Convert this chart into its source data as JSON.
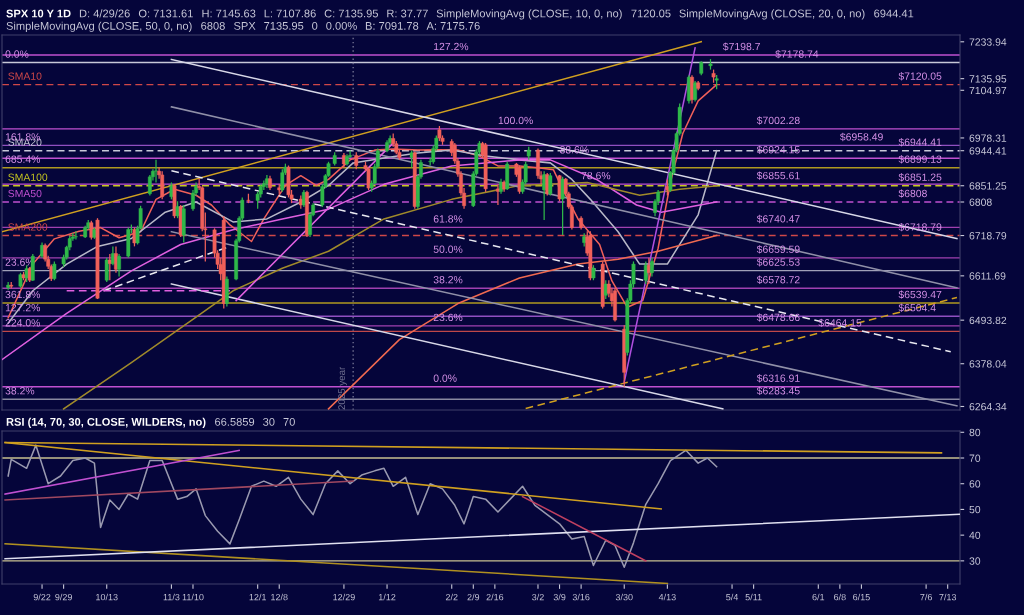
{
  "chart_data": [
    {
      "type": "candlestick",
      "title": "SPX 10 Y 1D",
      "tick_labels": "y",
      "annotations": [
        "D: 4/29/26",
        "O: 7131.61",
        "H: 7145.63",
        "L: 7107.86",
        "C: 7135.95",
        "R: 37.77",
        "SimpleMovingAvg (CLOSE, 10, 0, no)",
        "7120.05",
        "SimpleMovingAvg (CLOSE, 20, 0, no)",
        "6944.41",
        "SimpleMovingAvg (CLOSE, 50, 0, no)",
        "6808",
        "SPX",
        "7135.95",
        "0",
        "0.00%",
        "B: 7091.78",
        "A: 7175.76",
        {
          "text": "0.0%",
          "x": "2025-09-10",
          "y": 7178.74
        },
        {
          "text": "161.8%",
          "x": "2025-09-10",
          "y": 6958.49
        },
        {
          "text": "685.4%",
          "x": "2025-09-10",
          "y": 6899.13
        },
        {
          "text": "23.6%",
          "x": "2025-09-10",
          "y": 6625.53
        },
        {
          "text": "361.8%",
          "x": "2025-09-10",
          "y": 6539.47
        },
        {
          "text": "127.2%",
          "x": "2025-09-10",
          "y": 6504.4
        },
        {
          "text": "224.0%",
          "x": "2025-09-10",
          "y": 6464.15
        },
        {
          "text": "38.2%",
          "x": "2025-09-10",
          "y": 6283.45
        },
        {
          "text": "127.2%",
          "x": "2026-01-27",
          "y": 7198.7
        },
        {
          "text": "100.0%",
          "x": "2026-02-17",
          "y": 7002.28
        },
        {
          "text": "88.6%",
          "x": "2026-03-09",
          "y": 6924.15
        },
        {
          "text": "78.6%",
          "x": "2026-03-16",
          "y": 6855.61
        },
        {
          "text": "61.8%",
          "x": "2026-01-27",
          "y": 6740.47
        },
        {
          "text": "50.0%",
          "x": "2026-01-27",
          "y": 6659.59
        },
        {
          "text": "38.2%",
          "x": "2026-01-27",
          "y": 6578.72
        },
        {
          "text": "23.6%",
          "x": "2026-01-27",
          "y": 6478.66
        },
        {
          "text": "0.0%",
          "x": "2026-01-27",
          "y": 6316.91
        },
        {
          "text": "$7198.7",
          "x": "2026-05-01",
          "y": 7198.7
        },
        {
          "text": "$7178.74",
          "x": "2026-05-18",
          "y": 7178.74
        },
        {
          "text": "$7120.05",
          "x": "2026-06-27",
          "y": 7120.05
        },
        {
          "text": "$7002.28",
          "x": "2026-05-12",
          "y": 7002.28
        },
        {
          "text": "$6958.49",
          "x": "2026-06-08",
          "y": 6958.49
        },
        {
          "text": "$6944.41",
          "x": "2026-06-27",
          "y": 6944.41
        },
        {
          "text": "$6924.15",
          "x": "2026-05-12",
          "y": 6924.15
        },
        {
          "text": "$6899.13",
          "x": "2026-06-27",
          "y": 6899.13
        },
        {
          "text": "$6855.61",
          "x": "2026-05-12",
          "y": 6855.61
        },
        {
          "text": "$6851.25",
          "x": "2026-06-27",
          "y": 6851.25
        },
        {
          "text": "$6808",
          "x": "2026-06-27",
          "y": 6808
        },
        {
          "text": "$6740.47",
          "x": "2026-05-12",
          "y": 6740.47
        },
        {
          "text": "$6718.79",
          "x": "2026-06-27",
          "y": 6718.79
        },
        {
          "text": "$6659.59",
          "x": "2026-05-12",
          "y": 6659.59
        },
        {
          "text": "$6625.53",
          "x": "2026-05-12",
          "y": 6625.53
        },
        {
          "text": "$6578.72",
          "x": "2026-05-12",
          "y": 6578.72
        },
        {
          "text": "$6539.47",
          "x": "2026-06-27",
          "y": 6539.47
        },
        {
          "text": "$6504.4",
          "x": "2026-06-27",
          "y": 6504.4
        },
        {
          "text": "$6478.66",
          "x": "2026-05-12",
          "y": 6478.66
        },
        {
          "text": "$6464.15",
          "x": "2026-06-01",
          "y": 6464.15
        },
        {
          "text": "$6316.91",
          "x": "2026-05-12",
          "y": 6316.91
        },
        {
          "text": "$6283.45",
          "x": "2026-05-12",
          "y": 6283.45
        }
      ],
      "xlim": [
        "2025-09-09",
        "2026-07-17"
      ],
      "ylim": [
        6255,
        7252
      ],
      "yticks": [
        7233.94,
        7135.95,
        7104.97,
        6978.31,
        6944.41,
        6851.25,
        6808,
        6718.79,
        6611.69,
        6493.82,
        6378.04,
        6264.34
      ],
      "x": [
        "2025-09-11",
        "2025-09-12",
        "2025-09-15",
        "2025-09-16",
        "2025-09-17",
        "2025-09-18",
        "2025-09-19",
        "2025-09-22",
        "2025-09-23",
        "2025-09-24",
        "2025-09-25",
        "2025-09-26",
        "2025-09-29",
        "2025-09-30",
        "2025-10-01",
        "2025-10-02",
        "2025-10-03",
        "2025-10-06",
        "2025-10-07",
        "2025-10-08",
        "2025-10-09",
        "2025-10-10",
        "2025-10-13",
        "2025-10-14",
        "2025-10-15",
        "2025-10-16",
        "2025-10-17",
        "2025-10-20",
        "2025-10-21",
        "2025-10-22",
        "2025-10-23",
        "2025-10-24",
        "2025-10-27",
        "2025-10-28",
        "2025-10-29",
        "2025-10-30",
        "2025-10-31",
        "2025-11-03",
        "2025-11-04",
        "2025-11-05",
        "2025-11-06",
        "2025-11-07",
        "2025-11-10",
        "2025-11-11",
        "2025-11-12",
        "2025-11-13",
        "2025-11-14",
        "2025-11-17",
        "2025-11-18",
        "2025-11-19",
        "2025-11-20",
        "2025-11-21",
        "2025-11-24",
        "2025-11-25",
        "2025-11-26",
        "2025-11-28",
        "2025-12-01",
        "2025-12-02",
        "2025-12-03",
        "2025-12-04",
        "2025-12-05",
        "2025-12-08",
        "2025-12-09",
        "2025-12-10",
        "2025-12-11",
        "2025-12-12",
        "2025-12-15",
        "2025-12-16",
        "2025-12-17",
        "2025-12-18",
        "2025-12-19",
        "2025-12-22",
        "2025-12-23",
        "2025-12-24",
        "2025-12-26",
        "2025-12-29",
        "2025-12-30",
        "2025-12-31",
        "2026-01-02",
        "2026-01-05",
        "2026-01-06",
        "2026-01-07",
        "2026-01-08",
        "2026-01-09",
        "2026-01-12",
        "2026-01-13",
        "2026-01-14",
        "2026-01-15",
        "2026-01-16",
        "2026-01-20",
        "2026-01-21",
        "2026-01-22",
        "2026-01-23",
        "2026-01-26",
        "2026-01-27",
        "2026-01-28",
        "2026-01-29",
        "2026-01-30",
        "2026-02-02",
        "2026-02-03",
        "2026-02-04",
        "2026-02-05",
        "2026-02-06",
        "2026-02-09",
        "2026-02-10",
        "2026-02-11",
        "2026-02-12",
        "2026-02-13",
        "2026-02-17",
        "2026-02-18",
        "2026-02-19",
        "2026-02-20",
        "2026-02-23",
        "2026-02-24",
        "2026-02-25",
        "2026-02-26",
        "2026-02-27",
        "2026-03-02",
        "2026-03-03",
        "2026-03-04",
        "2026-03-05",
        "2026-03-06",
        "2026-03-09",
        "2026-03-10",
        "2026-03-11",
        "2026-03-12",
        "2026-03-13",
        "2026-03-16",
        "2026-03-17",
        "2026-03-18",
        "2026-03-19",
        "2026-03-20",
        "2026-03-23",
        "2026-03-24",
        "2026-03-25",
        "2026-03-26",
        "2026-03-27",
        "2026-03-30",
        "2026-03-31",
        "2026-04-01",
        "2026-04-02",
        "2026-04-06",
        "2026-04-07",
        "2026-04-08",
        "2026-04-09",
        "2026-04-10",
        "2026-04-13",
        "2026-04-14",
        "2026-04-15",
        "2026-04-16",
        "2026-04-17",
        "2026-04-20",
        "2026-04-21",
        "2026-04-22",
        "2026-04-23",
        "2026-04-24",
        "2026-04-27",
        "2026-04-28",
        "2026-04-29"
      ],
      "ohlc": [
        [
          6580,
          6595,
          6575,
          6587
        ],
        [
          6587,
          6595,
          6578,
          6584
        ],
        [
          6584,
          6620,
          6580,
          6615
        ],
        [
          6615,
          6622,
          6600,
          6606
        ],
        [
          6606,
          6640,
          6595,
          6631
        ],
        [
          6631,
          6635,
          6595,
          6600
        ],
        [
          6600,
          6670,
          6598,
          6664
        ],
        [
          6664,
          6700,
          6660,
          6693
        ],
        [
          6693,
          6698,
          6650,
          6656
        ],
        [
          6656,
          6665,
          6630,
          6637
        ],
        [
          6637,
          6642,
          6598,
          6604
        ],
        [
          6604,
          6650,
          6600,
          6643
        ],
        [
          6643,
          6668,
          6635,
          6661
        ],
        [
          6661,
          6692,
          6655,
          6688
        ],
        [
          6688,
          6718,
          6680,
          6711
        ],
        [
          6711,
          6725,
          6705,
          6715
        ],
        [
          6715,
          6730,
          6708,
          6715
        ],
        [
          6715,
          6745,
          6712,
          6740
        ],
        [
          6740,
          6760,
          6735,
          6753
        ],
        [
          6753,
          6758,
          6708,
          6714
        ],
        [
          6714,
          6740,
          6710,
          6735
        ],
        [
          6760,
          6765,
          6550,
          6552
        ],
        [
          6600,
          6660,
          6595,
          6654
        ],
        [
          6654,
          6670,
          6600,
          6644
        ],
        [
          6644,
          6690,
          6640,
          6671
        ],
        [
          6671,
          6690,
          6620,
          6629
        ],
        [
          6629,
          6670,
          6610,
          6664
        ],
        [
          6664,
          6740,
          6660,
          6735
        ],
        [
          6735,
          6748,
          6725,
          6735
        ],
        [
          6735,
          6740,
          6690,
          6699
        ],
        [
          6699,
          6745,
          6695,
          6738
        ],
        [
          6738,
          6798,
          6735,
          6791
        ],
        [
          6830,
          6880,
          6825,
          6875
        ],
        [
          6875,
          6895,
          6865,
          6890
        ],
        [
          6890,
          6920,
          6860,
          6890
        ],
        [
          6890,
          6900,
          6870,
          6880
        ],
        [
          6880,
          6890,
          6815,
          6822
        ],
        [
          6822,
          6860,
          6815,
          6851
        ],
        [
          6851,
          6855,
          6765,
          6771
        ],
        [
          6771,
          6810,
          6765,
          6796
        ],
        [
          6796,
          6800,
          6715,
          6720
        ],
        [
          6720,
          6800,
          6700,
          6790
        ],
        [
          6790,
          6840,
          6785,
          6832
        ],
        [
          6832,
          6860,
          6825,
          6850
        ],
        [
          6850,
          6870,
          6840,
          6846
        ],
        [
          6846,
          6850,
          6730,
          6737
        ],
        [
          6737,
          6780,
          6650,
          6734
        ],
        [
          6734,
          6738,
          6660,
          6672
        ],
        [
          6672,
          6680,
          6630,
          6642
        ],
        [
          6642,
          6660,
          6600,
          6617
        ],
        [
          6760,
          6770,
          6525,
          6538
        ],
        [
          6538,
          6610,
          6530,
          6603
        ],
        [
          6603,
          6710,
          6600,
          6705
        ],
        [
          6705,
          6770,
          6700,
          6765
        ],
        [
          6765,
          6820,
          6760,
          6813
        ],
        [
          6813,
          6830,
          6805,
          6812
        ],
        [
          6812,
          6835,
          6790,
          6829
        ],
        [
          6829,
          6855,
          6820,
          6849
        ],
        [
          6849,
          6865,
          6840,
          6857
        ],
        [
          6857,
          6880,
          6845,
          6870
        ],
        [
          6870,
          6878,
          6840,
          6846
        ],
        [
          6846,
          6855,
          6830,
          6840
        ],
        [
          6840,
          6895,
          6835,
          6886
        ],
        [
          6886,
          6910,
          6880,
          6901
        ],
        [
          6901,
          6905,
          6820,
          6827
        ],
        [
          6827,
          6840,
          6805,
          6816
        ],
        [
          6816,
          6825,
          6790,
          6800
        ],
        [
          6800,
          6840,
          6795,
          6834
        ],
        [
          6834,
          6838,
          6715,
          6721
        ],
        [
          6721,
          6780,
          6715,
          6774
        ],
        [
          6774,
          6805,
          6770,
          6800
        ],
        [
          6800,
          6855,
          6795,
          6849
        ],
        [
          6849,
          6882,
          6845,
          6878
        ],
        [
          6878,
          6915,
          6875,
          6910
        ],
        [
          6910,
          6940,
          6905,
          6932
        ],
        [
          6932,
          6938,
          6900,
          6909
        ],
        [
          6909,
          6935,
          6905,
          6929
        ],
        [
          6929,
          6945,
          6925,
          6932
        ],
        [
          6932,
          6940,
          6895,
          6905
        ],
        [
          6905,
          6915,
          6890,
          6896
        ],
        [
          6896,
          6900,
          6840,
          6845
        ],
        [
          6845,
          6865,
          6835,
          6858
        ],
        [
          6858,
          6910,
          6855,
          6902
        ],
        [
          6902,
          6950,
          6898,
          6944
        ],
        [
          6944,
          6972,
          6940,
          6966
        ],
        [
          6966,
          6985,
          6960,
          6977
        ],
        [
          6977,
          6990,
          6955,
          6963
        ],
        [
          6963,
          6970,
          6935,
          6940
        ],
        [
          6940,
          6948,
          6920,
          6926
        ],
        [
          6926,
          6945,
          6900,
          6939
        ],
        [
          6939,
          6942,
          6790,
          6796
        ],
        [
          6796,
          6880,
          6790,
          6875
        ],
        [
          6875,
          6920,
          6870,
          6913
        ],
        [
          6915,
          6925,
          6905,
          6915
        ],
        [
          6915,
          6958,
          6910,
          6950
        ],
        [
          6950,
          6985,
          6945,
          6978
        ],
        [
          7000,
          7010,
          6970,
          6978
        ],
        [
          6978,
          6985,
          6960,
          6969
        ],
        [
          6969,
          6975,
          6930,
          6939
        ],
        [
          6960,
          6965,
          6910,
          6917
        ],
        [
          6917,
          6925,
          6875,
          6882
        ],
        [
          6882,
          6890,
          6825,
          6832
        ],
        [
          6832,
          6845,
          6790,
          6798
        ],
        [
          6798,
          6890,
          6795,
          6883
        ],
        [
          6883,
          6948,
          6878,
          6941
        ],
        [
          6941,
          6970,
          6935,
          6964
        ],
        [
          6964,
          6968,
          6925,
          6932
        ],
        [
          6960,
          6965,
          6835,
          6843
        ],
        [
          6843,
          6855,
          6800,
          6836
        ],
        [
          6836,
          6870,
          6830,
          6861
        ],
        [
          6861,
          6865,
          6835,
          6843
        ],
        [
          6843,
          6915,
          6840,
          6909
        ],
        [
          6909,
          6912,
          6875,
          6881
        ],
        [
          6900,
          6905,
          6830,
          6836
        ],
        [
          6836,
          6868,
          6830,
          6861
        ],
        [
          6861,
          6915,
          6855,
          6908
        ],
        [
          6930,
          6955,
          6920,
          6946
        ],
        [
          6946,
          6950,
          6870,
          6878
        ],
        [
          6878,
          6890,
          6855,
          6869
        ],
        [
          6840,
          6890,
          6760,
          6881
        ],
        [
          6881,
          6885,
          6825,
          6830
        ],
        [
          6830,
          6885,
          6825,
          6878
        ],
        [
          6878,
          6880,
          6810,
          6816
        ],
        [
          6816,
          6875,
          6720,
          6869
        ],
        [
          6869,
          6872,
          6825,
          6830
        ],
        [
          6830,
          6835,
          6790,
          6795
        ],
        [
          6795,
          6800,
          6735,
          6740
        ],
        [
          6765,
          6770,
          6735,
          6740
        ],
        [
          6700,
          6725,
          6690,
          6716
        ],
        [
          6716,
          6730,
          6665,
          6672
        ],
        [
          6720,
          6730,
          6600,
          6606
        ],
        [
          6606,
          6640,
          6600,
          6632
        ],
        [
          6643,
          6650,
          6525,
          6530
        ],
        [
          6560,
          6600,
          6550,
          6590
        ],
        [
          6590,
          6600,
          6555,
          6565
        ],
        [
          6565,
          6580,
          6530,
          6545
        ],
        [
          6572,
          6580,
          6490,
          6494
        ],
        [
          6470,
          6480,
          6316.91,
          6355
        ],
        [
          6408,
          6552,
          6400,
          6546
        ],
        [
          6546,
          6600,
          6540,
          6590
        ],
        [
          6590,
          6650,
          6580,
          6643
        ],
        [
          6600,
          6650,
          6590,
          6640
        ],
        [
          6640,
          6660,
          6590,
          6620
        ],
        [
          6620,
          6660,
          6610,
          6650
        ],
        [
          6780,
          6815,
          6770,
          6810
        ],
        [
          6810,
          6840,
          6800,
          6834
        ],
        [
          6850,
          6868,
          6825,
          6840
        ],
        [
          6840,
          6890,
          6835,
          6886
        ],
        [
          6886,
          6950,
          6880,
          6945
        ],
        [
          6946,
          6995,
          6940,
          6990
        ],
        [
          6990,
          7070,
          6985,
          7060
        ],
        [
          7077,
          7145,
          7070,
          7140
        ],
        [
          7140,
          7145,
          7070,
          7080
        ],
        [
          7080,
          7130,
          7075,
          7125
        ],
        [
          7125,
          7130,
          7105,
          7110
        ],
        [
          7150,
          7182,
          7145,
          7179
        ],
        [
          7170,
          7188,
          7160,
          7175
        ],
        [
          7150,
          7160,
          7125,
          7140
        ],
        [
          7131.61,
          7145.63,
          7107.86,
          7135.95
        ]
      ],
      "series": [
        {
          "type": "line",
          "color": "#f0605a",
          "x": [
            "2025-09-11",
            "2025-09-19",
            "2025-09-26",
            "2025-10-04",
            "2025-10-11",
            "2025-10-17",
            "2025-10-24",
            "2025-10-29",
            "2025-11-04",
            "2025-11-11",
            "2025-11-16",
            "2025-11-22",
            "2025-11-29",
            "2025-12-03",
            "2025-12-10",
            "2025-12-15",
            "2025-12-20",
            "2025-12-24",
            "2025-12-31",
            "2026-01-08",
            "2026-01-14",
            "2026-01-22",
            "2026-01-29",
            "2026-02-04",
            "2026-02-11",
            "2026-02-17",
            "2026-02-24",
            "2026-03-02",
            "2026-03-07",
            "2026-03-10",
            "2026-03-15",
            "2026-03-22",
            "2026-03-26",
            "2026-03-31",
            "2026-04-05",
            "2026-04-10",
            "2026-04-14",
            "2026-04-18",
            "2026-04-23",
            "2026-04-29"
          ],
          "values": [
            6500,
            6643,
            6710,
            6730,
            6740,
            6713,
            6729,
            6815,
            6842,
            6826,
            6800,
            6747,
            6703,
            6763,
            6852,
            6878,
            6852,
            6868,
            6920,
            6946,
            6949,
            6946,
            6947,
            6946,
            6930,
            6904,
            6904,
            6899,
            6894,
            6842,
            6763,
            6695,
            6598,
            6528,
            6546,
            6685,
            6860,
            6990,
            7077,
            7120.05
          ]
        },
        {
          "type": "line",
          "color": "#b8b8c8",
          "x": [
            "2025-09-11",
            "2025-09-19",
            "2025-09-30",
            "2025-10-10",
            "2025-10-21",
            "2025-11-01",
            "2025-11-11",
            "2025-11-23",
            "2025-12-04",
            "2025-12-15",
            "2025-12-24",
            "2026-01-01",
            "2026-01-11",
            "2026-01-22",
            "2026-02-02",
            "2026-02-13",
            "2026-02-24",
            "2026-03-06",
            "2026-03-13",
            "2026-03-19",
            "2026-03-28",
            "2026-04-04",
            "2026-04-13",
            "2026-04-23",
            "2026-04-29"
          ],
          "values": [
            6486,
            6572,
            6643,
            6690,
            6711,
            6781,
            6808,
            6755,
            6763,
            6808,
            6852,
            6912,
            6925,
            6938,
            6946,
            6930,
            6920,
            6912,
            6868,
            6815,
            6729,
            6643,
            6643,
            6774,
            6944.41
          ]
        },
        {
          "type": "line",
          "color": "#e060e0",
          "x": [
            "2025-09-09",
            "2025-09-30",
            "2025-10-21",
            "2025-11-06",
            "2025-11-23",
            "2025-12-09",
            "2025-12-24",
            "2026-01-11",
            "2026-02-02",
            "2026-02-24",
            "2026-03-06",
            "2026-03-21",
            "2026-04-03",
            "2026-04-11",
            "2026-04-29"
          ],
          "values": [
            6389,
            6512,
            6625,
            6695,
            6734,
            6763,
            6789,
            6855,
            6904,
            6920,
            6920,
            6868,
            6800,
            6781,
            6808
          ]
        },
        {
          "type": "line",
          "color": "#a08a2a",
          "x": [
            "2025-09-29",
            "2025-10-21",
            "2025-11-11",
            "2025-11-23",
            "2025-12-09",
            "2025-12-24",
            "2026-01-11",
            "2026-02-02",
            "2026-02-24",
            "2026-03-18",
            "2026-04-04",
            "2026-04-17",
            "2026-04-29"
          ],
          "values": [
            6258,
            6381,
            6502,
            6572,
            6632,
            6677,
            6763,
            6815,
            6852,
            6860,
            6826,
            6842,
            6851.25
          ]
        },
        {
          "type": "line",
          "color": "#f06a50",
          "x": [
            "2025-12-24",
            "2026-01-16",
            "2026-02-04",
            "2026-02-24",
            "2026-03-15",
            "2026-03-28",
            "2026-04-10",
            "2026-04-29"
          ],
          "values": [
            6258,
            6442,
            6538,
            6606,
            6643,
            6656,
            6677,
            6718.79
          ]
        },
        {
          "type": "line",
          "color": "#d0a020",
          "x": [
            "2025-09-09",
            "2026-04-24"
          ],
          "values": [
            6729,
            7234
          ]
        },
        {
          "type": "line",
          "color": "#d8d8e8",
          "x": [
            "2025-11-03",
            "2026-07-16"
          ],
          "values": [
            7187,
            6711
          ]
        },
        {
          "type": "line",
          "color": "#9090a8",
          "x": [
            "2025-11-03",
            "2026-07-16"
          ],
          "values": [
            7061,
            6580
          ]
        },
        {
          "type": "line",
          "color": "#9090a8",
          "x": [
            "2025-11-03",
            "2026-07-16"
          ],
          "values": [
            6729,
            6266
          ]
        },
        {
          "type": "line",
          "color": "#d8d8e8",
          "x": [
            "2025-11-03",
            "2026-05-01"
          ],
          "values": [
            6590,
            6258
          ]
        },
        {
          "type": "line",
          "color": "#e8e8f0",
          "line_style": "dashed",
          "x": [
            "2025-11-03",
            "2026-07-14"
          ],
          "values": [
            6891,
            6410
          ]
        },
        {
          "type": "line",
          "color": "#e8e8f0",
          "line_style": "dashed",
          "x": [
            "2025-10-12",
            "2025-11-22"
          ],
          "values": [
            6572,
            6690
          ]
        },
        {
          "type": "line",
          "color": "#d0a020",
          "line_style": "dashed",
          "x": [
            "2026-02-26",
            "2026-07-16"
          ],
          "values": [
            6259,
            6554
          ]
        },
        {
          "type": "line",
          "color": "#e060e0",
          "x": [
            "2025-11-24",
            "2026-01-14"
          ],
          "values": [
            6546,
            6965
          ]
        },
        {
          "type": "line",
          "color": "#e060e0",
          "line_style": "dashed",
          "x": [
            "2025-09-30",
            "2025-11-22"
          ],
          "values": [
            6572,
            6572
          ]
        },
        {
          "type": "line",
          "color": "#b050e0",
          "x": [
            "2026-03-30",
            "2026-04-22"
          ],
          "values": [
            6329,
            7218
          ]
        }
      ],
      "ref_lines": [
        {
          "axis": "y",
          "value": 7198.7,
          "color": "#c050d0"
        },
        {
          "axis": "y",
          "value": 7178.74,
          "color": "#c8c8d8"
        },
        {
          "axis": "y",
          "value": 7120.05,
          "label": "SMA10",
          "color": "#d04848",
          "line_style": "dashed"
        },
        {
          "axis": "y",
          "value": 7002.28,
          "color": "#c050d0"
        },
        {
          "axis": "y",
          "value": 6958.49,
          "color": "#9050c0"
        },
        {
          "axis": "y",
          "value": 6944.41,
          "label": "SMA20",
          "color": "#c8c8d8",
          "line_style": "dashed"
        },
        {
          "axis": "y",
          "value": 6924.15,
          "color": "#c050d0"
        },
        {
          "axis": "y",
          "value": 6899.13,
          "color": "#b09a20"
        },
        {
          "axis": "y",
          "value": 6855.61,
          "color": "#c050d0"
        },
        {
          "axis": "y",
          "value": 6851.25,
          "label": "SMA100",
          "color": "#c8c820",
          "line_style": "dashed"
        },
        {
          "axis": "y",
          "value": 6808,
          "label": "SMA50",
          "color": "#c050d0",
          "line_style": "dashed"
        },
        {
          "axis": "y",
          "value": 6740.47,
          "color": "#a040b0"
        },
        {
          "axis": "y",
          "value": 6718.79,
          "label": "SMA200",
          "color": "#d04848",
          "line_style": "dashed"
        },
        {
          "axis": "y",
          "value": 6659.59,
          "color": "#a040b0"
        },
        {
          "axis": "y",
          "value": 6625.53,
          "color": "#a0a0b8"
        },
        {
          "axis": "y",
          "value": 6578.72,
          "color": "#a040b0"
        },
        {
          "axis": "y",
          "value": 6539.47,
          "color": "#b09a20"
        },
        {
          "axis": "y",
          "value": 6504.4,
          "color": "#9050c0"
        },
        {
          "axis": "y",
          "value": 6478.66,
          "color": "#a040b0"
        },
        {
          "axis": "y",
          "value": 6464.15,
          "color": "#c04848"
        },
        {
          "axis": "y",
          "value": 6316.91,
          "color": "#c050d0"
        },
        {
          "axis": "y",
          "value": 6283.45,
          "color": "#8888a0"
        },
        {
          "axis": "x",
          "value": "2026-01-01",
          "label": "2025 year",
          "color": "#707090",
          "line_style": "dotted"
        }
      ]
    },
    {
      "type": "line",
      "title": "RSI (14, 70, 30, CLOSE, WILDERS, no)",
      "annotations": [
        "66.5859",
        "30",
        "70"
      ],
      "xlim": [
        "2025-09-09",
        "2026-07-17"
      ],
      "xticks": [
        {
          "value": "2025-09-22",
          "label": "9/22"
        },
        {
          "value": "2025-09-29",
          "label": "9/29"
        },
        {
          "value": "2025-10-13",
          "label": "10/13"
        },
        {
          "value": "2025-11-03",
          "label": "11/3"
        },
        {
          "value": "2025-11-10",
          "label": "11/10"
        },
        {
          "value": "2025-12-01",
          "label": "12/1"
        },
        {
          "value": "2025-12-08",
          "label": "12/8"
        },
        {
          "value": "2025-12-29",
          "label": "12/29"
        },
        {
          "value": "2026-01-12",
          "label": "1/12"
        },
        {
          "value": "2026-02-02",
          "label": "2/2"
        },
        {
          "value": "2026-02-09",
          "label": "2/9"
        },
        {
          "value": "2026-02-16",
          "label": "2/16"
        },
        {
          "value": "2026-03-02",
          "label": "3/2"
        },
        {
          "value": "2026-03-09",
          "label": "3/9"
        },
        {
          "value": "2026-03-16",
          "label": "3/16"
        },
        {
          "value": "2026-03-30",
          "label": "3/30"
        },
        {
          "value": "2026-04-13",
          "label": "4/13"
        },
        {
          "value": "2026-05-04",
          "label": "5/4"
        },
        {
          "value": "2026-05-11",
          "label": "5/11"
        },
        {
          "value": "2026-06-01",
          "label": "6/1"
        },
        {
          "value": "2026-06-08",
          "label": "6/8"
        },
        {
          "value": "2026-06-15",
          "label": "6/15"
        },
        {
          "value": "2026-07-06",
          "label": "7/6"
        },
        {
          "value": "2026-07-13",
          "label": "7/13"
        }
      ],
      "ylim": [
        21,
        80.5
      ],
      "yticks": [
        30,
        40,
        50,
        60,
        70,
        80
      ],
      "x": [
        "2025-09-11",
        "2025-09-12",
        "2025-09-17",
        "2025-09-20",
        "2025-09-24",
        "2025-09-28",
        "2025-10-02",
        "2025-10-06",
        "2025-10-09",
        "2025-10-11",
        "2025-10-14",
        "2025-10-17",
        "2025-10-20",
        "2025-10-23",
        "2025-10-27",
        "2025-10-31",
        "2025-11-05",
        "2025-11-08",
        "2025-11-11",
        "2025-11-14",
        "2025-11-18",
        "2025-11-22",
        "2025-11-25",
        "2025-11-29",
        "2025-12-03",
        "2025-12-07",
        "2025-12-11",
        "2025-12-15",
        "2025-12-19",
        "2025-12-23",
        "2025-12-27",
        "2025-12-31",
        "2026-01-04",
        "2026-01-08",
        "2026-01-11",
        "2026-01-14",
        "2026-01-18",
        "2026-01-22",
        "2026-01-26",
        "2026-01-30",
        "2026-02-03",
        "2026-02-06",
        "2026-02-09",
        "2026-02-13",
        "2026-02-17",
        "2026-02-21",
        "2026-02-25",
        "2026-03-01",
        "2026-03-05",
        "2026-03-09",
        "2026-03-13",
        "2026-03-17",
        "2026-03-20",
        "2026-03-24",
        "2026-03-27",
        "2026-03-30",
        "2026-04-02",
        "2026-04-06",
        "2026-04-10",
        "2026-04-14",
        "2026-04-19",
        "2026-04-23",
        "2026-04-26",
        "2026-04-29"
      ],
      "series": [
        {
          "color": "#9a9ab0",
          "values": [
            63,
            69.5,
            66,
            75,
            60,
            63,
            69,
            70,
            68,
            43,
            53.7,
            50,
            56,
            54,
            69,
            69,
            54,
            55,
            58,
            47.6,
            41.5,
            36.6,
            46,
            59,
            61,
            59,
            62.5,
            54,
            48,
            60,
            65,
            60,
            63.5,
            65,
            66,
            59,
            62.5,
            48,
            60,
            58,
            51.6,
            44.4,
            55,
            54,
            49,
            54,
            59,
            51.6,
            48,
            44.4,
            38.5,
            39.5,
            28.2,
            38,
            36,
            27.5,
            37,
            52,
            60,
            69,
            73,
            68,
            70,
            66.5859
          ]
        },
        {
          "color": "#d0a020",
          "x": [
            "2025-09-10",
            "2026-07-11"
          ],
          "values": [
            76,
            72
          ]
        },
        {
          "color": "#d0a020",
          "x": [
            "2025-09-10",
            "2026-04-11"
          ],
          "values": [
            76,
            50.2
          ]
        },
        {
          "color": "#b09020",
          "x": [
            "2025-09-10",
            "2026-04-13"
          ],
          "values": [
            36.6,
            21.2
          ]
        },
        {
          "color": "#e0e0f0",
          "x": [
            "2025-09-10",
            "2026-07-17"
          ],
          "values": [
            30.8,
            48.1
          ]
        },
        {
          "color": "#c050d0",
          "x": [
            "2025-09-10",
            "2025-11-25"
          ],
          "values": [
            56,
            73
          ]
        },
        {
          "color": "#a04860",
          "x": [
            "2025-09-10",
            "2026-01-01"
          ],
          "values": [
            53.7,
            61
          ]
        },
        {
          "color": "#c04060",
          "x": [
            "2026-02-25",
            "2026-04-06"
          ],
          "values": [
            55,
            30
          ]
        }
      ],
      "ref_lines": [
        {
          "axis": "y",
          "value": 70,
          "color": "#c8c090"
        },
        {
          "axis": "y",
          "value": 30,
          "color": "#c8c090"
        }
      ]
    }
  ]
}
